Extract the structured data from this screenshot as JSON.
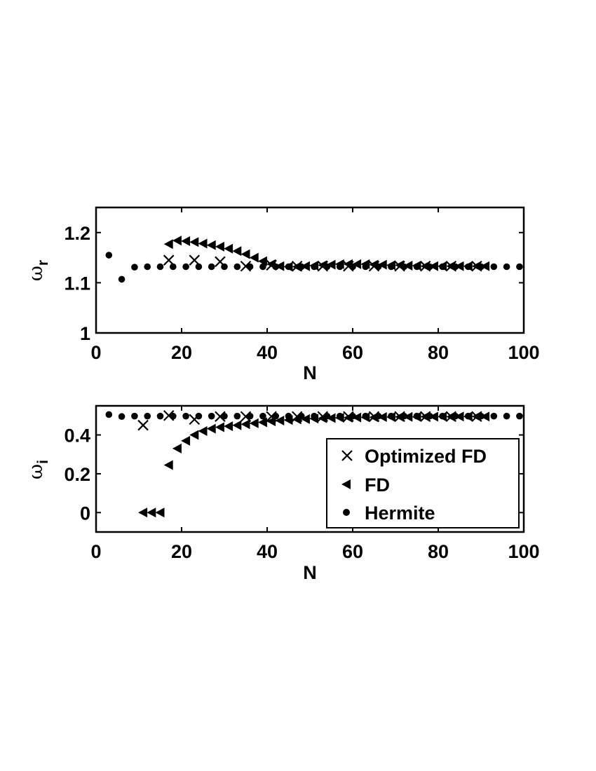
{
  "chart_data": [
    {
      "type": "scatter",
      "xlabel": "N",
      "ylabel": "ω",
      "ylabel_sub": "r",
      "xlim": [
        0,
        100
      ],
      "ylim": [
        1,
        1.25
      ],
      "xticks": [
        0,
        20,
        40,
        60,
        80,
        100
      ],
      "yticks": [
        1,
        1.1,
        1.2
      ],
      "xtick_labels": [
        "0",
        "20",
        "40",
        "60",
        "80",
        "100"
      ],
      "ytick_labels": [
        "1",
        "1.1",
        "1.2"
      ],
      "grid": false,
      "series": [
        {
          "name": "Optimized FD",
          "marker": "x",
          "x": [
            17,
            23,
            29,
            35,
            41,
            47,
            53,
            59,
            65,
            71,
            77,
            83,
            89
          ],
          "y": [
            1.145,
            1.145,
            1.142,
            1.133,
            1.135,
            1.133,
            1.133,
            1.133,
            1.133,
            1.133,
            1.133,
            1.133,
            1.133
          ]
        },
        {
          "name": "FD",
          "marker": "triangle-left",
          "x": [
            17,
            19,
            21,
            23,
            25,
            27,
            29,
            31,
            33,
            35,
            37,
            39,
            41,
            43,
            45,
            47,
            49,
            51,
            53,
            55,
            57,
            59,
            61,
            63,
            65,
            67,
            69,
            71,
            73,
            75,
            77,
            79,
            81,
            83,
            85,
            87,
            89,
            91
          ],
          "y": [
            1.177,
            1.184,
            1.183,
            1.181,
            1.178,
            1.175,
            1.172,
            1.168,
            1.163,
            1.157,
            1.15,
            1.143,
            1.137,
            1.133,
            1.132,
            1.132,
            1.133,
            1.134,
            1.135,
            1.136,
            1.137,
            1.137,
            1.137,
            1.137,
            1.136,
            1.136,
            1.135,
            1.135,
            1.134,
            1.134,
            1.133,
            1.133,
            1.133,
            1.133,
            1.133,
            1.133,
            1.133,
            1.133
          ]
        },
        {
          "name": "Hermite",
          "marker": "dot",
          "x": [
            3,
            6,
            9,
            12,
            15,
            18,
            21,
            24,
            27,
            30,
            33,
            36,
            39,
            42,
            45,
            48,
            51,
            54,
            57,
            60,
            63,
            66,
            69,
            72,
            75,
            78,
            81,
            84,
            87,
            90,
            93,
            96,
            99
          ],
          "y": [
            1.155,
            1.107,
            1.131,
            1.132,
            1.132,
            1.132,
            1.132,
            1.132,
            1.132,
            1.132,
            1.132,
            1.132,
            1.132,
            1.132,
            1.132,
            1.132,
            1.132,
            1.132,
            1.132,
            1.132,
            1.132,
            1.132,
            1.132,
            1.132,
            1.132,
            1.132,
            1.132,
            1.132,
            1.132,
            1.132,
            1.132,
            1.132,
            1.132
          ]
        }
      ]
    },
    {
      "type": "scatter",
      "xlabel": "N",
      "ylabel": "ω",
      "ylabel_sub": "i",
      "xlim": [
        0,
        100
      ],
      "ylim": [
        -0.1,
        0.55
      ],
      "xticks": [
        0,
        20,
        40,
        60,
        80,
        100
      ],
      "yticks": [
        0,
        0.2,
        0.4
      ],
      "xtick_labels": [
        "0",
        "20",
        "40",
        "60",
        "80",
        "100"
      ],
      "ytick_labels": [
        "0",
        "0.2",
        "0.4"
      ],
      "grid": false,
      "legend_position": "lower-right",
      "series": [
        {
          "name": "Optimized FD",
          "marker": "x",
          "x": [
            11,
            17,
            23,
            29,
            35,
            41,
            47,
            53,
            59,
            65,
            71,
            77,
            83,
            89
          ],
          "y": [
            0.45,
            0.5,
            0.48,
            0.495,
            0.495,
            0.495,
            0.495,
            0.495,
            0.495,
            0.495,
            0.495,
            0.495,
            0.495,
            0.495
          ]
        },
        {
          "name": "FD",
          "marker": "triangle-left",
          "x": [
            11,
            13,
            15,
            17,
            19,
            21,
            23,
            25,
            27,
            29,
            31,
            33,
            35,
            37,
            39,
            41,
            43,
            45,
            47,
            49,
            51,
            53,
            55,
            57,
            59,
            61,
            63,
            65,
            67,
            69,
            71,
            73,
            75,
            77,
            79,
            81,
            83,
            85,
            87,
            89,
            91
          ],
          "y": [
            0,
            0,
            0,
            0.245,
            0.33,
            0.37,
            0.4,
            0.42,
            0.432,
            0.44,
            0.445,
            0.45,
            0.455,
            0.46,
            0.465,
            0.47,
            0.474,
            0.477,
            0.48,
            0.482,
            0.484,
            0.486,
            0.487,
            0.488,
            0.489,
            0.49,
            0.491,
            0.491,
            0.492,
            0.492,
            0.493,
            0.493,
            0.493,
            0.494,
            0.494,
            0.494,
            0.494,
            0.495,
            0.495,
            0.495,
            0.495
          ]
        },
        {
          "name": "Hermite",
          "marker": "dot",
          "x": [
            3,
            6,
            9,
            12,
            15,
            18,
            21,
            24,
            27,
            30,
            33,
            36,
            39,
            42,
            45,
            48,
            51,
            54,
            57,
            60,
            63,
            66,
            69,
            72,
            75,
            78,
            81,
            84,
            87,
            90,
            93,
            96,
            99
          ],
          "y": [
            0.505,
            0.495,
            0.497,
            0.497,
            0.497,
            0.497,
            0.497,
            0.497,
            0.497,
            0.497,
            0.497,
            0.497,
            0.497,
            0.497,
            0.497,
            0.497,
            0.497,
            0.497,
            0.497,
            0.497,
            0.497,
            0.497,
            0.497,
            0.497,
            0.497,
            0.497,
            0.497,
            0.497,
            0.497,
            0.497,
            0.497,
            0.497,
            0.497
          ]
        }
      ]
    }
  ],
  "legend": {
    "items": [
      "Optimized FD",
      "FD",
      "Hermite"
    ]
  }
}
